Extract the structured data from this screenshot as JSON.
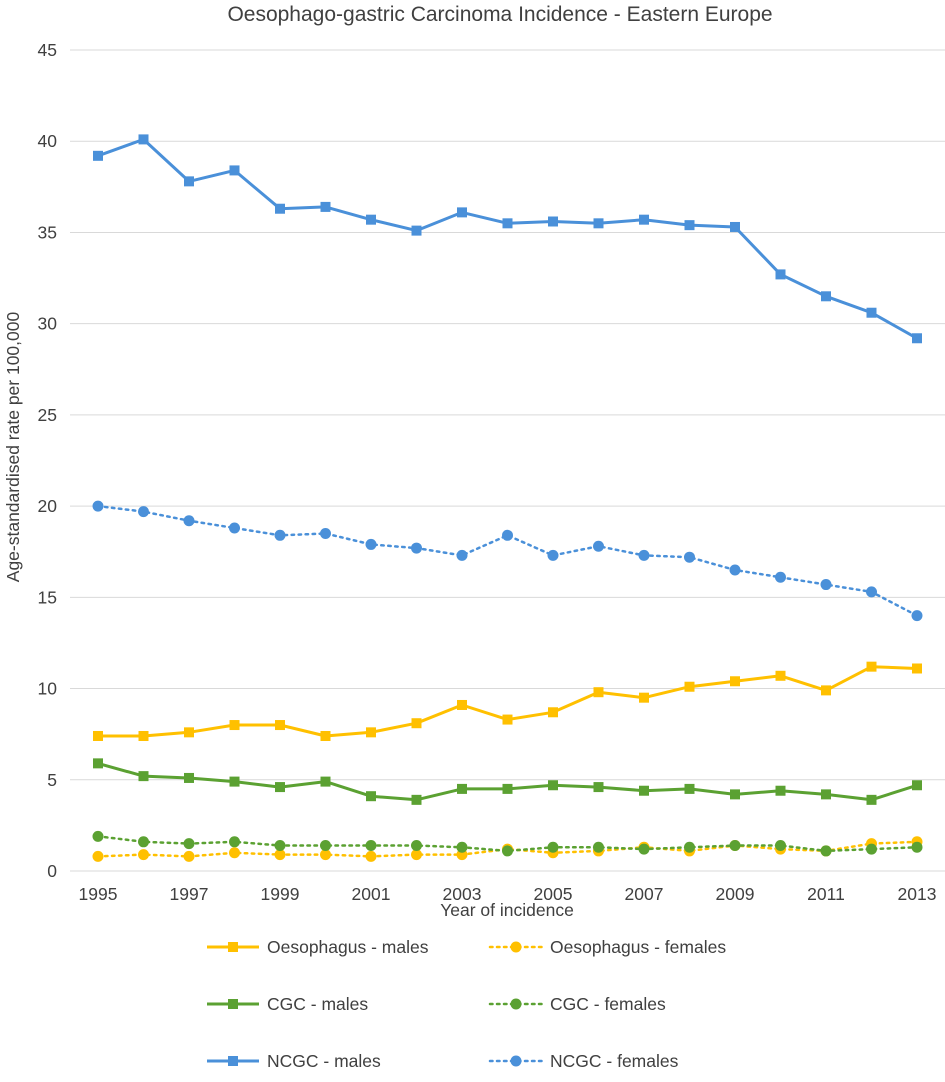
{
  "chart_data": {
    "type": "line",
    "title": "Oesophago-gastric Carcinoma Incidence - Eastern Europe",
    "xlabel": "Year of incidence",
    "ylabel": "Age-standardised rate per 100,000",
    "x": [
      1995,
      1996,
      1997,
      1998,
      1999,
      2000,
      2001,
      2002,
      2003,
      2004,
      2005,
      2006,
      2007,
      2008,
      2009,
      2010,
      2011,
      2012,
      2013
    ],
    "x_tick_labels": [
      "1995",
      "1997",
      "1999",
      "2001",
      "2003",
      "2005",
      "2007",
      "2009",
      "2011",
      "2013"
    ],
    "y_tick_labels": [
      "0",
      "5",
      "10",
      "15",
      "20",
      "25",
      "30",
      "35",
      "40",
      "45"
    ],
    "ylim": [
      0,
      45
    ],
    "grid": true,
    "legend_position": "bottom",
    "series": [
      {
        "name": "Oesophagus - males",
        "color": "#FFC000",
        "dash": "solid",
        "marker": "square",
        "values": [
          7.4,
          7.4,
          7.6,
          8.0,
          8.0,
          7.4,
          7.6,
          8.1,
          9.1,
          8.3,
          8.7,
          9.8,
          9.5,
          10.1,
          10.4,
          10.7,
          9.9,
          11.2,
          11.1
        ]
      },
      {
        "name": "Oesophagus - females",
        "color": "#FFC000",
        "dash": "dotted",
        "marker": "circle",
        "values": [
          0.8,
          0.9,
          0.8,
          1.0,
          0.9,
          0.9,
          0.8,
          0.9,
          0.9,
          1.2,
          1.0,
          1.1,
          1.3,
          1.1,
          1.4,
          1.2,
          1.1,
          1.5,
          1.6
        ]
      },
      {
        "name": "CGC - males",
        "color": "#5BA132",
        "dash": "solid",
        "marker": "square",
        "values": [
          5.9,
          5.2,
          5.1,
          4.9,
          4.6,
          4.9,
          4.1,
          3.9,
          4.5,
          4.5,
          4.7,
          4.6,
          4.4,
          4.5,
          4.2,
          4.4,
          4.2,
          3.9,
          4.7
        ]
      },
      {
        "name": "CGC - females",
        "color": "#5BA132",
        "dash": "dotted",
        "marker": "circle",
        "values": [
          1.9,
          1.6,
          1.5,
          1.6,
          1.4,
          1.4,
          1.4,
          1.4,
          1.3,
          1.1,
          1.3,
          1.3,
          1.2,
          1.3,
          1.4,
          1.4,
          1.1,
          1.2,
          1.3
        ]
      },
      {
        "name": "NCGC - males",
        "color": "#4A90D9",
        "dash": "solid",
        "marker": "square",
        "values": [
          39.2,
          40.1,
          37.8,
          38.4,
          36.3,
          36.4,
          35.7,
          35.1,
          36.1,
          35.5,
          35.6,
          35.5,
          35.7,
          35.4,
          35.3,
          32.7,
          31.5,
          30.6,
          29.2
        ]
      },
      {
        "name": "NCGC - females",
        "color": "#4A90D9",
        "dash": "dotted",
        "marker": "circle",
        "values": [
          20.0,
          19.7,
          19.2,
          18.8,
          18.4,
          18.5,
          17.9,
          17.7,
          17.3,
          18.4,
          17.3,
          17.8,
          17.3,
          17.2,
          16.5,
          16.1,
          15.7,
          15.3,
          14.0
        ]
      }
    ]
  }
}
